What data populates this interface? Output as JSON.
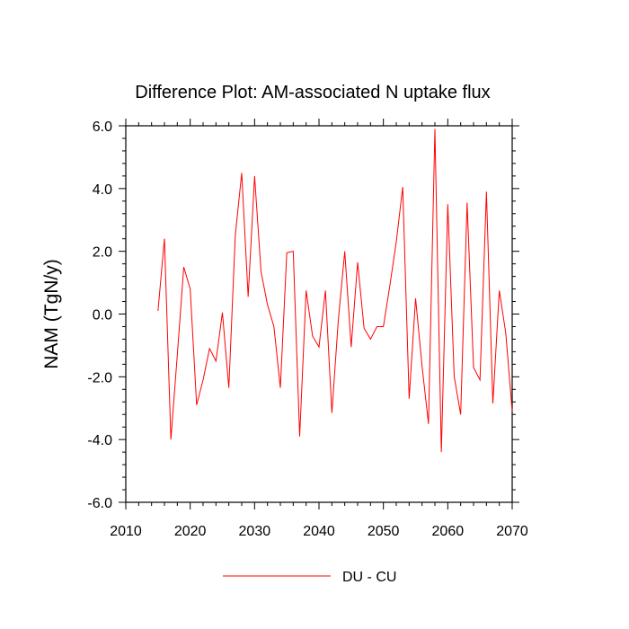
{
  "chart_data": {
    "type": "line",
    "title": "Difference Plot: AM-associated N uptake flux",
    "xlabel": "",
    "ylabel": "NAM  (TgN/y)",
    "xlim": [
      2010,
      2070
    ],
    "ylim": [
      -6.0,
      6.0
    ],
    "x_ticks": [
      2010,
      2020,
      2030,
      2040,
      2050,
      2060,
      2070
    ],
    "x_tick_labels": [
      "2010",
      "2020",
      "2030",
      "2040",
      "2050",
      "2060",
      "2070"
    ],
    "y_ticks": [
      6.0,
      4.0,
      2.0,
      0.0,
      -2.0,
      -4.0,
      -6.0
    ],
    "y_tick_labels": [
      "6.0",
      "4.0",
      "2.0",
      "0.0",
      "-2.0",
      "-4.0",
      "-6.0"
    ],
    "legend_position": "bottom-center",
    "series": [
      {
        "name": "DU - CU",
        "color": "#ff0000",
        "x": [
          2015,
          2016,
          2017,
          2018,
          2019,
          2020,
          2021,
          2022,
          2023,
          2024,
          2025,
          2026,
          2027,
          2028,
          2029,
          2030,
          2031,
          2032,
          2033,
          2034,
          2035,
          2036,
          2037,
          2038,
          2039,
          2040,
          2041,
          2042,
          2043,
          2044,
          2045,
          2046,
          2047,
          2048,
          2049,
          2050,
          2051,
          2052,
          2053,
          2054,
          2055,
          2056,
          2057,
          2058,
          2059,
          2060,
          2061,
          2062,
          2063,
          2064,
          2065,
          2066,
          2067,
          2068,
          2069,
          2070
        ],
        "values": [
          0.1,
          2.4,
          -4.0,
          -1.3,
          1.5,
          0.8,
          -2.9,
          -2.1,
          -1.1,
          -1.5,
          0.05,
          -2.35,
          2.5,
          4.5,
          0.55,
          4.4,
          1.35,
          0.3,
          -0.4,
          -2.35,
          1.95,
          2.0,
          -3.9,
          0.75,
          -0.7,
          -1.05,
          0.75,
          -3.15,
          -0.2,
          2.0,
          -1.05,
          1.65,
          -0.45,
          -0.8,
          -0.4,
          -0.4,
          0.9,
          2.3,
          4.05,
          -2.7,
          0.5,
          -1.65,
          -3.5,
          5.9,
          -4.4,
          3.5,
          -2.0,
          -3.2,
          3.55,
          -1.7,
          -2.1,
          3.9,
          -2.85,
          0.75,
          -0.6,
          -3.1
        ]
      }
    ]
  }
}
